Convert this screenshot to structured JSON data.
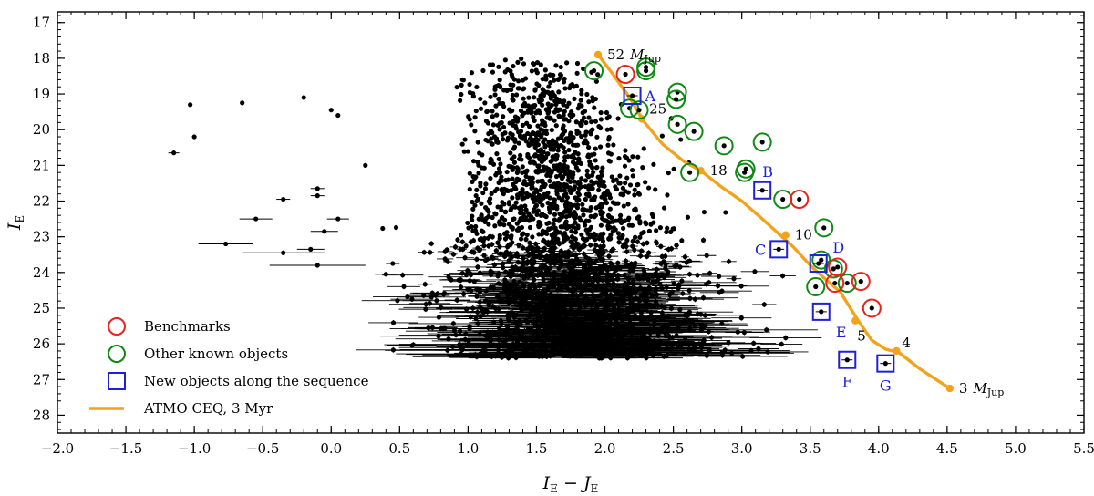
{
  "chart_data": {
    "type": "scatter",
    "xlabel": "I_E − J_E",
    "ylabel": "I_E",
    "xlim": [
      -2.0,
      5.5
    ],
    "ylim": [
      28.5,
      16.7
    ],
    "y_inverted": true,
    "xticks": [
      "−2.0",
      "−1.5",
      "−1.0",
      "−0.5",
      "0.0",
      "0.5",
      "1.0",
      "1.5",
      "2.0",
      "2.5",
      "3.0",
      "3.5",
      "4.0",
      "4.5",
      "5.0",
      "5.5"
    ],
    "xtick_values": [
      -2.0,
      -1.5,
      -1.0,
      -0.5,
      0.0,
      0.5,
      1.0,
      1.5,
      2.0,
      2.5,
      3.0,
      3.5,
      4.0,
      4.5,
      5.0,
      5.5
    ],
    "yticks": [
      "17",
      "18",
      "19",
      "20",
      "21",
      "22",
      "23",
      "24",
      "25",
      "26",
      "27",
      "28"
    ],
    "ytick_values": [
      17,
      18,
      19,
      20,
      21,
      22,
      23,
      24,
      25,
      26,
      27,
      28
    ],
    "grid": false,
    "legend_position": "bottom-left",
    "colors": {
      "points": "#000000",
      "benchmarks": "#e8231c",
      "other_known": "#0e8a14",
      "new_objects": "#1f1fd6",
      "model": "#f5a21b"
    },
    "legend": [
      {
        "label": "Benchmarks",
        "marker": "circle",
        "color": "#e8231c"
      },
      {
        "label": "Other known objects",
        "marker": "circle",
        "color": "#0e8a14"
      },
      {
        "label": "New objects along the sequence",
        "marker": "square",
        "color": "#1f1fd6"
      },
      {
        "label": "ATMO CEQ, 3 Myr",
        "marker": "line",
        "color": "#f5a21b"
      }
    ],
    "field_population": {
      "description": "dense cloud of cluster members",
      "center_color": 1.75,
      "bright_limit": 17.85,
      "faint_limit": 26.4,
      "approx_count": 2600
    },
    "outliers_with_errors": [
      {
        "x": -1.15,
        "y": 20.65,
        "xerr": 0.04
      },
      {
        "x": -1.0,
        "y": 20.2,
        "xerr": 0.0
      },
      {
        "x": -1.03,
        "y": 19.3,
        "xerr": 0.0
      },
      {
        "x": -0.65,
        "y": 19.25,
        "xerr": 0.0
      },
      {
        "x": -0.2,
        "y": 19.1,
        "xerr": 0.0
      },
      {
        "x": 0.0,
        "y": 19.45,
        "xerr": 0.0
      },
      {
        "x": 0.05,
        "y": 19.6,
        "xerr": 0.0
      },
      {
        "x": 0.25,
        "y": 21.0,
        "xerr": 0.0
      },
      {
        "x": -0.35,
        "y": 21.95,
        "xerr": 0.05
      },
      {
        "x": -0.55,
        "y": 22.5,
        "xerr": 0.12
      },
      {
        "x": -0.1,
        "y": 21.65,
        "xerr": 0.05
      },
      {
        "x": -0.1,
        "y": 21.85,
        "xerr": 0.05
      },
      {
        "x": 0.05,
        "y": 22.5,
        "xerr": 0.08
      },
      {
        "x": -0.05,
        "y": 22.85,
        "xerr": 0.1
      },
      {
        "x": -0.77,
        "y": 23.2,
        "xerr": 0.2
      },
      {
        "x": -0.35,
        "y": 23.45,
        "xerr": 0.3
      },
      {
        "x": -0.15,
        "y": 23.35,
        "xerr": 0.1
      },
      {
        "x": -0.1,
        "y": 23.8,
        "xerr": 0.35
      },
      {
        "x": 0.45,
        "y": 23.75,
        "xerr": 0.05
      },
      {
        "x": 0.4,
        "y": 24.05,
        "xerr": 0.08
      }
    ],
    "model_track": {
      "name": "ATMO CEQ, 3 Myr",
      "x": [
        1.95,
        2.05,
        2.18,
        2.28,
        2.42,
        2.58,
        2.7,
        2.85,
        3.0,
        3.15,
        3.28,
        3.38,
        3.5,
        3.6,
        3.72,
        3.85,
        3.95,
        4.05,
        4.15,
        4.3,
        4.52
      ],
      "y": [
        17.9,
        18.4,
        19.1,
        19.75,
        20.4,
        20.9,
        21.15,
        21.6,
        22.0,
        22.5,
        22.95,
        23.3,
        23.8,
        24.15,
        24.55,
        25.35,
        25.9,
        26.15,
        26.25,
        26.7,
        27.25
      ],
      "mass_points": [
        {
          "x": 1.95,
          "y": 17.9,
          "label": "52",
          "unit": "M",
          "sub": "Jup"
        },
        {
          "x": 2.27,
          "y": 19.7,
          "label": "25"
        },
        {
          "x": 2.7,
          "y": 21.15,
          "label": "18"
        },
        {
          "x": 3.32,
          "y": 22.95,
          "label": "10"
        },
        {
          "x": 3.83,
          "y": 25.35,
          "label": "5"
        },
        {
          "x": 4.13,
          "y": 26.2,
          "label": "4"
        },
        {
          "x": 4.52,
          "y": 27.25,
          "label": "3",
          "unit": "M",
          "sub": "Jup"
        }
      ]
    },
    "benchmarks": [
      {
        "x": 2.15,
        "y": 18.45
      },
      {
        "x": 3.42,
        "y": 21.95
      },
      {
        "x": 3.7,
        "y": 23.85
      },
      {
        "x": 3.68,
        "y": 24.3
      },
      {
        "x": 3.87,
        "y": 24.25
      },
      {
        "x": 3.95,
        "y": 25.0
      }
    ],
    "other_known": [
      {
        "x": 1.92,
        "y": 18.35
      },
      {
        "x": 2.3,
        "y": 18.25
      },
      {
        "x": 2.3,
        "y": 18.35
      },
      {
        "x": 2.53,
        "y": 18.95
      },
      {
        "x": 2.52,
        "y": 19.15
      },
      {
        "x": 2.18,
        "y": 19.4
      },
      {
        "x": 2.25,
        "y": 19.45
      },
      {
        "x": 2.53,
        "y": 19.85
      },
      {
        "x": 2.65,
        "y": 20.05
      },
      {
        "x": 2.87,
        "y": 20.45
      },
      {
        "x": 3.15,
        "y": 20.35
      },
      {
        "x": 3.03,
        "y": 21.1
      },
      {
        "x": 3.02,
        "y": 21.2
      },
      {
        "x": 2.62,
        "y": 21.2
      },
      {
        "x": 3.3,
        "y": 21.95
      },
      {
        "x": 3.6,
        "y": 22.75
      },
      {
        "x": 3.58,
        "y": 23.65
      },
      {
        "x": 3.67,
        "y": 23.9
      },
      {
        "x": 3.77,
        "y": 24.3
      },
      {
        "x": 3.54,
        "y": 24.4
      }
    ],
    "new_objects": [
      {
        "x": 2.2,
        "y": 19.05,
        "label": "A",
        "label_pos": "right"
      },
      {
        "x": 3.15,
        "y": 21.7,
        "label": "B",
        "label_pos": "above"
      },
      {
        "x": 3.27,
        "y": 23.35,
        "label": "C",
        "label_pos": "left"
      },
      {
        "x": 3.56,
        "y": 23.75,
        "label": "D",
        "label_pos": "above-right"
      },
      {
        "x": 3.58,
        "y": 25.1,
        "label": "E",
        "label_pos": "below-right"
      },
      {
        "x": 3.77,
        "y": 26.45,
        "label": "F",
        "label_pos": "below"
      },
      {
        "x": 4.05,
        "y": 26.55,
        "label": "G",
        "label_pos": "below"
      }
    ]
  }
}
